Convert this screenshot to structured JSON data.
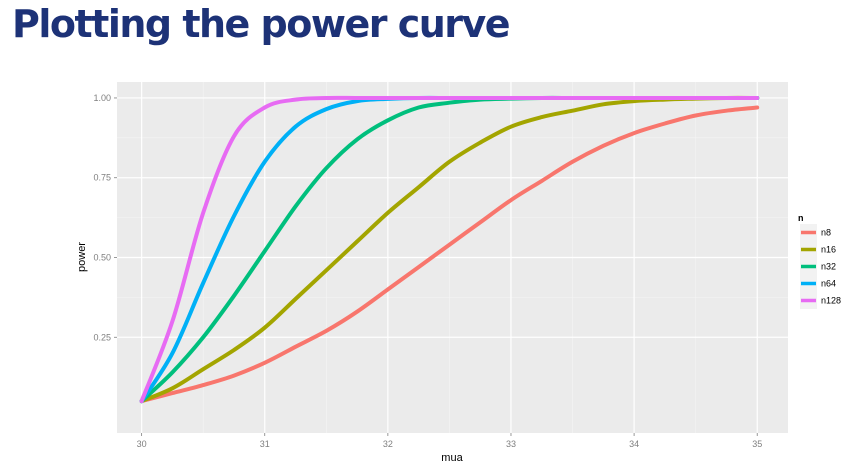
{
  "slide": {
    "title": "Plotting the power curve"
  },
  "chart_data": {
    "type": "line",
    "xlabel": "mua",
    "ylabel": "power",
    "xlim": [
      29.8,
      35.25
    ],
    "ylim": [
      -0.05,
      1.05
    ],
    "x_ticks": [
      {
        "value": 30,
        "label": "30"
      },
      {
        "value": 31,
        "label": "31"
      },
      {
        "value": 32,
        "label": "32"
      },
      {
        "value": 33,
        "label": "33"
      },
      {
        "value": 34,
        "label": "34"
      },
      {
        "value": 35,
        "label": "35"
      }
    ],
    "y_ticks": [
      {
        "value": 0.25,
        "label": "0.25"
      },
      {
        "value": 0.5,
        "label": "0.50"
      },
      {
        "value": 0.75,
        "label": "0.75"
      },
      {
        "value": 1.0,
        "label": "1.00"
      }
    ],
    "grid": true,
    "legend": {
      "title": "n",
      "position": "right"
    },
    "x": [
      30.0,
      30.25,
      30.5,
      30.75,
      31.0,
      31.25,
      31.5,
      31.75,
      32.0,
      32.25,
      32.5,
      32.75,
      33.0,
      33.25,
      33.5,
      33.75,
      34.0,
      34.25,
      34.5,
      34.75,
      35.0
    ],
    "series": [
      {
        "name": "n8",
        "color": "#f8766d",
        "values": [
          0.05,
          0.075,
          0.1,
          0.13,
          0.17,
          0.22,
          0.27,
          0.33,
          0.4,
          0.47,
          0.54,
          0.61,
          0.68,
          0.74,
          0.8,
          0.85,
          0.89,
          0.92,
          0.945,
          0.96,
          0.97
        ]
      },
      {
        "name": "n16",
        "color": "#a3a500",
        "values": [
          0.05,
          0.09,
          0.15,
          0.21,
          0.28,
          0.37,
          0.46,
          0.55,
          0.64,
          0.72,
          0.8,
          0.86,
          0.91,
          0.94,
          0.96,
          0.98,
          0.99,
          0.995,
          0.998,
          1.0,
          1.0
        ]
      },
      {
        "name": "n32",
        "color": "#00bf7d",
        "values": [
          0.05,
          0.14,
          0.25,
          0.38,
          0.52,
          0.66,
          0.78,
          0.87,
          0.93,
          0.97,
          0.985,
          0.995,
          0.998,
          1.0,
          1.0,
          1.0,
          1.0,
          1.0,
          1.0,
          1.0,
          1.0
        ]
      },
      {
        "name": "n64",
        "color": "#00b0f6",
        "values": [
          0.05,
          0.2,
          0.42,
          0.63,
          0.8,
          0.91,
          0.965,
          0.99,
          0.997,
          1.0,
          1.0,
          1.0,
          1.0,
          1.0,
          1.0,
          1.0,
          1.0,
          1.0,
          1.0,
          1.0,
          1.0
        ]
      },
      {
        "name": "n128",
        "color": "#e76bf3",
        "values": [
          0.05,
          0.3,
          0.64,
          0.88,
          0.97,
          0.995,
          1.0,
          1.0,
          1.0,
          1.0,
          1.0,
          1.0,
          1.0,
          1.0,
          1.0,
          1.0,
          1.0,
          1.0,
          1.0,
          1.0,
          1.0
        ]
      }
    ]
  }
}
